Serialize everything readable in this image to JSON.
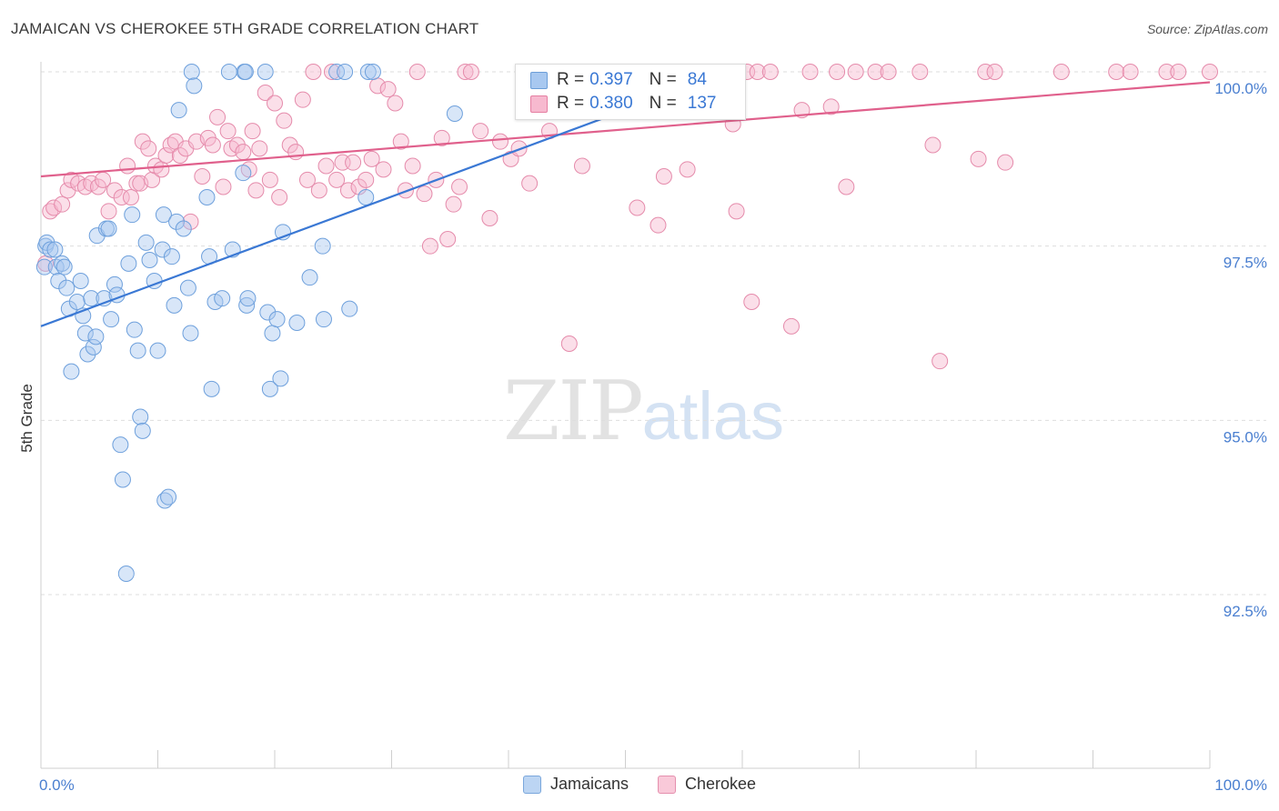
{
  "title": "JAMAICAN VS CHEROKEE 5TH GRADE CORRELATION CHART",
  "source": "Source: ZipAtlas.com",
  "watermark": {
    "zip": "ZIP",
    "atlas": "atlas"
  },
  "legend": {
    "rows": [
      {
        "r_label": "R =",
        "r_value": "0.397",
        "n_label": "N =",
        "n_value": "84",
        "color": "#a8c8f0",
        "border": "#6c9ed8"
      },
      {
        "r_label": "R =",
        "r_value": "0.380",
        "n_label": "N =",
        "n_value": "137",
        "color": "#f7b9cf",
        "border": "#e57fa2"
      }
    ]
  },
  "bottom_legend": [
    {
      "label": "Jamaicans",
      "color": "#bcd5f3",
      "border": "#7aa7dc"
    },
    {
      "label": "Cherokee",
      "color": "#f9c9d9",
      "border": "#e590ae"
    }
  ],
  "chart_data": {
    "type": "scatter",
    "title": "JAMAICAN VS CHEROKEE 5TH GRADE CORRELATION CHART",
    "xlabel": "",
    "ylabel": "5th Grade",
    "xlim": [
      0,
      100
    ],
    "ylim": [
      90.4,
      100.4
    ],
    "x_tick_labels": [
      "0.0%",
      "100.0%"
    ],
    "y_ticks": [
      92.5,
      95.0,
      97.5,
      100.0
    ],
    "y_tick_labels": [
      "92.5%",
      "95.0%",
      "97.5%",
      "100.0%"
    ],
    "grid": "horizontal dashed",
    "colors": {
      "jamaicans": "#3a78d4",
      "cherokee": "#e0608c"
    },
    "series": [
      {
        "name": "Jamaicans",
        "r": 0.397,
        "n": 84,
        "trend": {
          "x": [
            0,
            50
          ],
          "y": [
            96.35,
            99.45
          ]
        },
        "points": [
          [
            0.3,
            97.2
          ],
          [
            0.4,
            97.5
          ],
          [
            0.5,
            97.55
          ],
          [
            0.8,
            97.45
          ],
          [
            1.2,
            97.45
          ],
          [
            1.3,
            97.2
          ],
          [
            1.5,
            97.0
          ],
          [
            1.8,
            97.25
          ],
          [
            2.0,
            97.2
          ],
          [
            2.2,
            96.9
          ],
          [
            2.4,
            96.6
          ],
          [
            2.6,
            95.7
          ],
          [
            3.1,
            96.7
          ],
          [
            3.4,
            97.0
          ],
          [
            3.6,
            96.5
          ],
          [
            3.8,
            96.25
          ],
          [
            4.0,
            95.95
          ],
          [
            4.3,
            96.75
          ],
          [
            4.5,
            96.05
          ],
          [
            4.7,
            96.2
          ],
          [
            4.8,
            97.65
          ],
          [
            5.4,
            96.75
          ],
          [
            5.6,
            97.75
          ],
          [
            5.8,
            97.75
          ],
          [
            6.0,
            96.45
          ],
          [
            6.3,
            96.95
          ],
          [
            6.5,
            96.8
          ],
          [
            6.8,
            94.65
          ],
          [
            7.0,
            94.15
          ],
          [
            7.3,
            92.8
          ],
          [
            7.5,
            97.25
          ],
          [
            7.8,
            97.95
          ],
          [
            8.0,
            96.3
          ],
          [
            8.3,
            96.0
          ],
          [
            8.5,
            95.05
          ],
          [
            8.7,
            94.85
          ],
          [
            9.0,
            97.55
          ],
          [
            9.3,
            97.3
          ],
          [
            9.7,
            97.0
          ],
          [
            10.0,
            96.0
          ],
          [
            10.4,
            97.45
          ],
          [
            10.5,
            97.95
          ],
          [
            10.6,
            93.85
          ],
          [
            10.9,
            93.9
          ],
          [
            11.2,
            97.35
          ],
          [
            11.4,
            96.65
          ],
          [
            11.6,
            97.85
          ],
          [
            11.8,
            99.45
          ],
          [
            12.2,
            97.75
          ],
          [
            12.6,
            96.9
          ],
          [
            12.8,
            96.25
          ],
          [
            12.9,
            100.0
          ],
          [
            13.1,
            99.8
          ],
          [
            14.2,
            98.2
          ],
          [
            14.4,
            97.35
          ],
          [
            14.6,
            95.45
          ],
          [
            14.9,
            96.7
          ],
          [
            15.5,
            96.75
          ],
          [
            16.1,
            100.0
          ],
          [
            16.4,
            97.45
          ],
          [
            17.3,
            98.55
          ],
          [
            17.4,
            100.0
          ],
          [
            17.5,
            100.0
          ],
          [
            17.6,
            96.65
          ],
          [
            17.7,
            96.75
          ],
          [
            19.2,
            100.0
          ],
          [
            19.4,
            96.55
          ],
          [
            19.6,
            95.45
          ],
          [
            19.8,
            96.25
          ],
          [
            20.2,
            96.45
          ],
          [
            20.5,
            95.6
          ],
          [
            20.7,
            97.7
          ],
          [
            21.9,
            96.4
          ],
          [
            23.0,
            97.05
          ],
          [
            24.1,
            97.5
          ],
          [
            24.2,
            96.45
          ],
          [
            25.3,
            100.0
          ],
          [
            26.0,
            100.0
          ],
          [
            26.4,
            96.6
          ],
          [
            27.8,
            98.2
          ],
          [
            28.0,
            100.0
          ],
          [
            28.4,
            100.0
          ],
          [
            35.4,
            99.4
          ],
          [
            42.0,
            100.0
          ],
          [
            44.1,
            100.0
          ]
        ]
      },
      {
        "name": "Cherokee",
        "r": 0.38,
        "n": 137,
        "trend": {
          "x": [
            0,
            100
          ],
          "y": [
            98.5,
            99.85
          ]
        },
        "points": [
          [
            0.4,
            97.25
          ],
          [
            0.8,
            98.0
          ],
          [
            1.1,
            98.05
          ],
          [
            1.8,
            98.1
          ],
          [
            2.3,
            98.3
          ],
          [
            2.6,
            98.45
          ],
          [
            3.2,
            98.4
          ],
          [
            3.8,
            98.35
          ],
          [
            4.3,
            98.4
          ],
          [
            4.9,
            98.35
          ],
          [
            5.3,
            98.45
          ],
          [
            5.8,
            98.0
          ],
          [
            6.3,
            98.3
          ],
          [
            6.9,
            98.2
          ],
          [
            7.4,
            98.65
          ],
          [
            7.7,
            98.2
          ],
          [
            8.2,
            98.4
          ],
          [
            8.5,
            98.4
          ],
          [
            8.7,
            99.0
          ],
          [
            9.2,
            98.9
          ],
          [
            9.5,
            98.45
          ],
          [
            9.8,
            98.65
          ],
          [
            10.3,
            98.6
          ],
          [
            10.7,
            98.8
          ],
          [
            11.1,
            98.95
          ],
          [
            11.5,
            99.0
          ],
          [
            11.9,
            98.8
          ],
          [
            12.4,
            98.9
          ],
          [
            12.8,
            97.85
          ],
          [
            13.3,
            99.0
          ],
          [
            13.8,
            98.5
          ],
          [
            14.3,
            99.05
          ],
          [
            14.7,
            98.95
          ],
          [
            15.1,
            99.35
          ],
          [
            15.6,
            98.35
          ],
          [
            16.0,
            99.15
          ],
          [
            16.3,
            98.9
          ],
          [
            16.8,
            98.95
          ],
          [
            17.3,
            98.85
          ],
          [
            17.8,
            98.6
          ],
          [
            18.1,
            99.15
          ],
          [
            18.4,
            98.3
          ],
          [
            18.7,
            98.9
          ],
          [
            19.2,
            99.7
          ],
          [
            19.6,
            98.45
          ],
          [
            20.0,
            99.55
          ],
          [
            20.4,
            98.2
          ],
          [
            20.8,
            99.3
          ],
          [
            21.3,
            98.95
          ],
          [
            21.8,
            98.85
          ],
          [
            22.4,
            99.6
          ],
          [
            22.8,
            98.45
          ],
          [
            23.3,
            100.0
          ],
          [
            23.8,
            98.3
          ],
          [
            24.4,
            98.65
          ],
          [
            24.9,
            100.0
          ],
          [
            25.3,
            98.45
          ],
          [
            25.8,
            98.7
          ],
          [
            26.3,
            98.3
          ],
          [
            26.7,
            98.7
          ],
          [
            27.2,
            98.35
          ],
          [
            27.8,
            98.45
          ],
          [
            28.3,
            98.75
          ],
          [
            28.8,
            99.8
          ],
          [
            29.3,
            98.6
          ],
          [
            29.7,
            99.75
          ],
          [
            30.3,
            99.55
          ],
          [
            30.8,
            99.0
          ],
          [
            31.2,
            98.3
          ],
          [
            31.8,
            98.65
          ],
          [
            32.2,
            100.0
          ],
          [
            32.8,
            98.25
          ],
          [
            33.3,
            97.5
          ],
          [
            33.8,
            98.45
          ],
          [
            34.3,
            99.05
          ],
          [
            34.8,
            97.6
          ],
          [
            35.3,
            98.1
          ],
          [
            35.8,
            98.35
          ],
          [
            36.3,
            100.0
          ],
          [
            36.8,
            100.0
          ],
          [
            37.6,
            99.15
          ],
          [
            38.4,
            97.9
          ],
          [
            39.3,
            99.0
          ],
          [
            40.2,
            98.75
          ],
          [
            40.9,
            98.9
          ],
          [
            41.8,
            98.4
          ],
          [
            42.6,
            100.0
          ],
          [
            43.5,
            99.15
          ],
          [
            44.3,
            100.0
          ],
          [
            45.2,
            96.1
          ],
          [
            46.3,
            98.65
          ],
          [
            47.5,
            100.0
          ],
          [
            48.5,
            100.0
          ],
          [
            49.2,
            100.0
          ],
          [
            50.0,
            100.0
          ],
          [
            51.0,
            98.05
          ],
          [
            52.2,
            100.0
          ],
          [
            52.8,
            97.8
          ],
          [
            53.3,
            98.5
          ],
          [
            53.9,
            100.0
          ],
          [
            55.3,
            98.6
          ],
          [
            56.8,
            100.0
          ],
          [
            58.1,
            100.0
          ],
          [
            59.2,
            99.25
          ],
          [
            59.5,
            98.0
          ],
          [
            60.4,
            100.0
          ],
          [
            60.8,
            96.7
          ],
          [
            61.3,
            100.0
          ],
          [
            62.4,
            100.0
          ],
          [
            64.2,
            96.35
          ],
          [
            65.1,
            99.45
          ],
          [
            65.8,
            100.0
          ],
          [
            67.6,
            99.5
          ],
          [
            68.1,
            100.0
          ],
          [
            68.9,
            98.35
          ],
          [
            69.7,
            100.0
          ],
          [
            71.4,
            100.0
          ],
          [
            72.5,
            100.0
          ],
          [
            75.2,
            100.0
          ],
          [
            76.3,
            98.95
          ],
          [
            76.9,
            95.85
          ],
          [
            80.2,
            98.75
          ],
          [
            80.8,
            100.0
          ],
          [
            81.6,
            100.0
          ],
          [
            82.5,
            98.7
          ],
          [
            87.3,
            100.0
          ],
          [
            92.0,
            100.0
          ],
          [
            93.2,
            100.0
          ],
          [
            96.3,
            100.0
          ],
          [
            97.3,
            100.0
          ],
          [
            100.0,
            100.0
          ]
        ]
      }
    ]
  }
}
